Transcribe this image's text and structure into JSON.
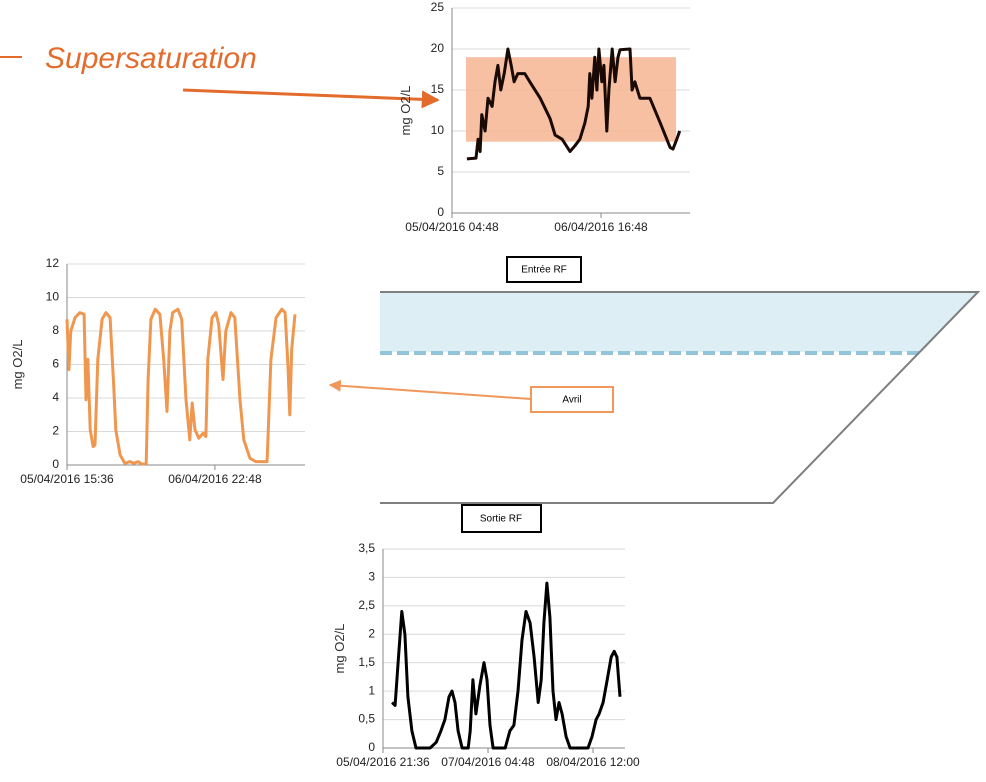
{
  "slide": {
    "heading": "Supersaturation",
    "inlet": "Entrée RF",
    "month": "Avril",
    "outlet": "Sortie RF"
  },
  "chart_data": [
    {
      "type": "line",
      "ylabel": "mg O2/L",
      "color": "#1a0a05",
      "band": [
        8.7,
        19
      ],
      "band_color": "#f6b592",
      "xlim": [
        0,
        57.5
      ],
      "xticks": [
        {
          "value": 0,
          "label": "05/04/2016 04:48"
        },
        {
          "value": 36,
          "label": "06/04/2016 16:48"
        }
      ],
      "ylim": [
        0,
        25
      ],
      "yticks": [
        0,
        5,
        10,
        15,
        20,
        25
      ],
      "grid": true,
      "x": [
        3.6,
        5.8,
        6.3,
        6.8,
        7.2,
        8.0,
        8.7,
        9.7,
        10.4,
        11.1,
        11.8,
        12.6,
        13.5,
        14.3,
        15.0,
        15.9,
        17.6,
        18.8,
        21.3,
        23.7,
        24.9,
        26.6,
        28.5,
        29.7,
        30.9,
        32.1,
        32.9,
        33.3,
        33.8,
        34.5,
        35.0,
        35.5,
        36.2,
        36.7,
        37.4,
        37.9,
        38.7,
        39.4,
        40.1,
        40.6,
        43.0,
        43.5,
        44.2,
        45.4,
        47.8,
        50.3,
        52.7,
        53.4,
        54.3,
        55.0
      ],
      "values": [
        6.6,
        6.7,
        9,
        7.5,
        12,
        10,
        14,
        13,
        16,
        18,
        15,
        17,
        20,
        18,
        16,
        17,
        17,
        16,
        14,
        11.5,
        9.5,
        9,
        7.5,
        8.2,
        9,
        11,
        13,
        17,
        14,
        19,
        15,
        20,
        16,
        18,
        10,
        15,
        20,
        16,
        19,
        19.9,
        20,
        15,
        16,
        14,
        14,
        11,
        8,
        7.8,
        9,
        10
      ]
    },
    {
      "type": "line",
      "ylabel": "mg O2/L",
      "color": "#f0974f",
      "xlim": [
        0,
        50.2
      ],
      "xticks": [
        {
          "value": 0,
          "label": "05/04/2016 15:36"
        },
        {
          "value": 31.2,
          "label": "06/04/2016 22:48"
        }
      ],
      "ylim": [
        0,
        12
      ],
      "yticks": [
        0,
        2,
        4,
        6,
        8,
        10,
        12
      ],
      "grid": true,
      "x": [
        0,
        0.4,
        0.8,
        1.7,
        2.7,
        3.6,
        4.0,
        4.4,
        4.9,
        5.5,
        5.9,
        6.5,
        7.4,
        8.2,
        9.1,
        9.9,
        10.3,
        11.2,
        12.2,
        13.3,
        14.1,
        15.0,
        15.8,
        16.7,
        17.1,
        17.7,
        18.6,
        19.6,
        20.4,
        21.1,
        21.7,
        22.3,
        23.4,
        24.2,
        25.1,
        25.9,
        26.4,
        27.0,
        27.8,
        28.7,
        29.3,
        29.7,
        30.6,
        31.4,
        32.0,
        32.9,
        33.5,
        34.6,
        35.4,
        36.5,
        37.3,
        38.6,
        39.8,
        41.1,
        42.2,
        43.0,
        44.1,
        45.3,
        46.0,
        46.6,
        47.0,
        47.4,
        48.1
      ],
      "values": [
        8.7,
        5.7,
        8,
        8.8,
        9.1,
        9,
        3.9,
        6.3,
        2.1,
        1.1,
        1.2,
        6.3,
        8.7,
        9.1,
        8.8,
        4.5,
        2.1,
        0.6,
        0.1,
        0.2,
        0.1,
        0.2,
        0.05,
        0.1,
        5.1,
        8.7,
        9.3,
        9,
        6.3,
        3.2,
        8,
        9.1,
        9.3,
        8.7,
        3.9,
        1.5,
        3.7,
        2.1,
        1.6,
        1.9,
        1.7,
        6.3,
        8.8,
        9.1,
        8.4,
        5.1,
        8,
        9.1,
        8.8,
        3.9,
        1.5,
        0.4,
        0.2,
        0.2,
        0.2,
        6.3,
        8.8,
        9.3,
        9.1,
        6,
        3,
        6.9,
        9
      ]
    },
    {
      "type": "line",
      "ylabel": "mg O2/L",
      "color": "#000000",
      "xlim": [
        0,
        71.9
      ],
      "xticks": [
        {
          "value": 0,
          "label": "05/04/2016 21:36"
        },
        {
          "value": 31.2,
          "label": "07/04/2016 04:48"
        },
        {
          "value": 62.4,
          "label": "08/04/2016 12:00"
        }
      ],
      "ylim": [
        0,
        3.5
      ],
      "yticks": [
        0,
        {
          "value": 0.5,
          "label": "0,5"
        },
        1,
        {
          "value": 1.5,
          "label": "1,5"
        },
        2,
        {
          "value": 2.5,
          "label": "2,5"
        },
        3,
        {
          "value": 3.5,
          "label": "3,5"
        }
      ],
      "grid": true,
      "x": [
        2.7,
        3.6,
        4.5,
        5.6,
        6.5,
        7.4,
        8.6,
        9.8,
        11.0,
        14.0,
        15.8,
        17.2,
        18.4,
        19.6,
        20.5,
        21.4,
        22.3,
        23.5,
        25.3,
        25.9,
        26.7,
        27.6,
        28.8,
        30.0,
        30.9,
        31.8,
        32.7,
        36.3,
        37.7,
        38.9,
        40.1,
        41.3,
        42.5,
        43.7,
        44.9,
        46.1,
        47.0,
        47.8,
        48.7,
        49.6,
        50.5,
        51.4,
        52.3,
        53.2,
        54.4,
        55.6,
        60.9,
        62.1,
        63.3,
        64.2,
        65.4,
        66.6,
        67.8,
        68.7,
        69.5,
        70.4
      ],
      "values": [
        0.8,
        0.75,
        1.5,
        2.4,
        2.0,
        0.9,
        0.3,
        0,
        0,
        0,
        0.1,
        0.3,
        0.5,
        0.9,
        1.0,
        0.8,
        0.3,
        0,
        0,
        0.3,
        1.2,
        0.6,
        1.1,
        1.5,
        1.2,
        0.4,
        0,
        0,
        0.3,
        0.4,
        1.0,
        1.9,
        2.4,
        2.2,
        1.6,
        0.8,
        1.2,
        2.2,
        2.9,
        2.3,
        1.0,
        0.5,
        0.8,
        0.6,
        0.2,
        0,
        0,
        0.2,
        0.5,
        0.6,
        0.8,
        1.2,
        1.6,
        1.7,
        1.6,
        0.9
      ]
    }
  ]
}
